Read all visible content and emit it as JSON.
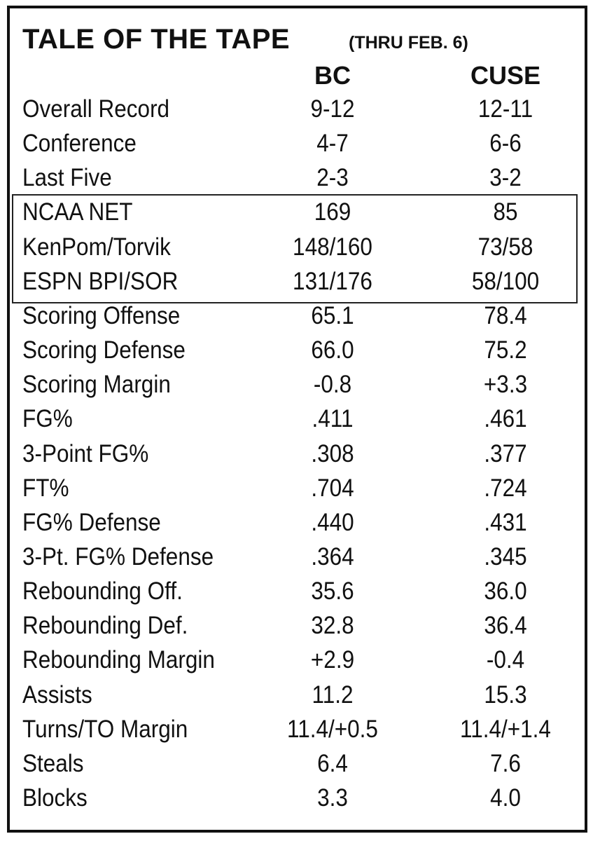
{
  "header": {
    "title": "TALE OF THE TAPE",
    "subtitle": "(THRU FEB. 6)"
  },
  "table": {
    "columns": [
      "BC",
      "CUSE"
    ],
    "rows": [
      [
        "Overall Record",
        "9-12",
        "12-11"
      ],
      [
        "Conference",
        "4-7",
        "6-6"
      ],
      [
        "Last Five",
        "2-3",
        "3-2"
      ],
      [
        "NCAA NET",
        "169",
        "85"
      ],
      [
        "KenPom/Torvik",
        "148/160",
        "73/58"
      ],
      [
        "ESPN BPI/SOR",
        "131/176",
        "58/100"
      ],
      [
        "Scoring Offense",
        "65.1",
        "78.4"
      ],
      [
        "Scoring Defense",
        "66.0",
        "75.2"
      ],
      [
        "Scoring Margin",
        "-0.8",
        "+3.3"
      ],
      [
        "FG%",
        ".411",
        ".461"
      ],
      [
        "3-Point FG%",
        ".308",
        ".377"
      ],
      [
        "FT%",
        ".704",
        ".724"
      ],
      [
        "FG% Defense",
        ".440",
        ".431"
      ],
      [
        "3-Pt. FG% Defense",
        ".364",
        ".345"
      ],
      [
        "Rebounding Off.",
        "35.6",
        "36.0"
      ],
      [
        "Rebounding Def.",
        "32.8",
        "36.4"
      ],
      [
        "Rebounding Margin",
        "+2.9",
        "-0.4"
      ],
      [
        "Assists",
        "11.2",
        "15.3"
      ],
      [
        "Turns/TO Margin",
        "11.4/+0.5",
        "11.4/+1.4"
      ],
      [
        "Steals",
        "6.4",
        "7.6"
      ],
      [
        "Blocks",
        "3.3",
        "4.0"
      ]
    ]
  }
}
